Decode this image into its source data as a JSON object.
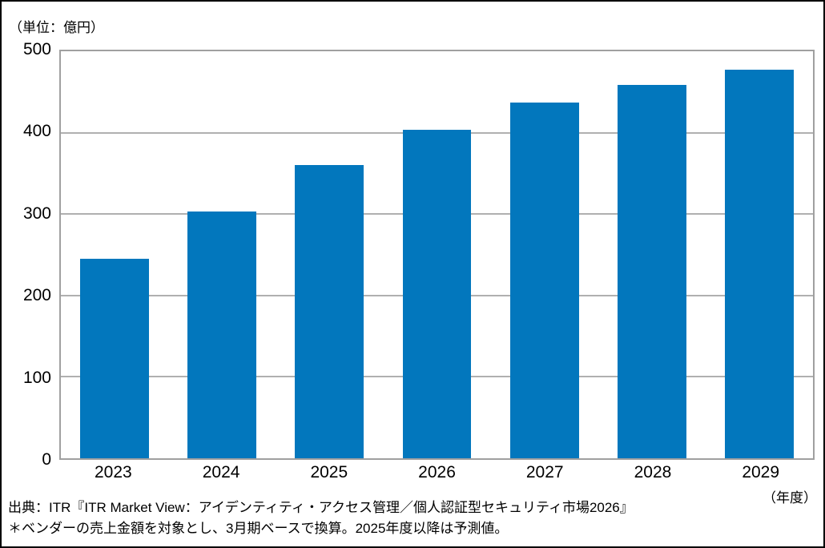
{
  "chart_data": {
    "type": "bar",
    "title": "",
    "unit_label": "（単位：億円）",
    "x_axis_label": "（年度）",
    "categories": [
      "2023",
      "2024",
      "2025",
      "2026",
      "2027",
      "2028",
      "2029"
    ],
    "values": [
      245,
      303,
      360,
      404,
      437,
      459,
      477
    ],
    "ylim": [
      0,
      500
    ],
    "yticks": [
      0,
      100,
      200,
      300,
      400,
      500
    ],
    "grid": true,
    "legend": "none"
  },
  "footer": {
    "source_line": "出典：ITR『ITR Market View：アイデンティティ・アクセス管理／個人認証型セキュリティ市場2026』",
    "note_line": "＊ベンダーの売上金額を対象とし、3月期ベースで換算。2025年度以降は予測値。"
  },
  "colors": {
    "bar": "#0277bd",
    "gridline": "#b0b0b0",
    "plot_border": "#a0a0a0",
    "frame_border": "#000000",
    "text": "#000000"
  }
}
